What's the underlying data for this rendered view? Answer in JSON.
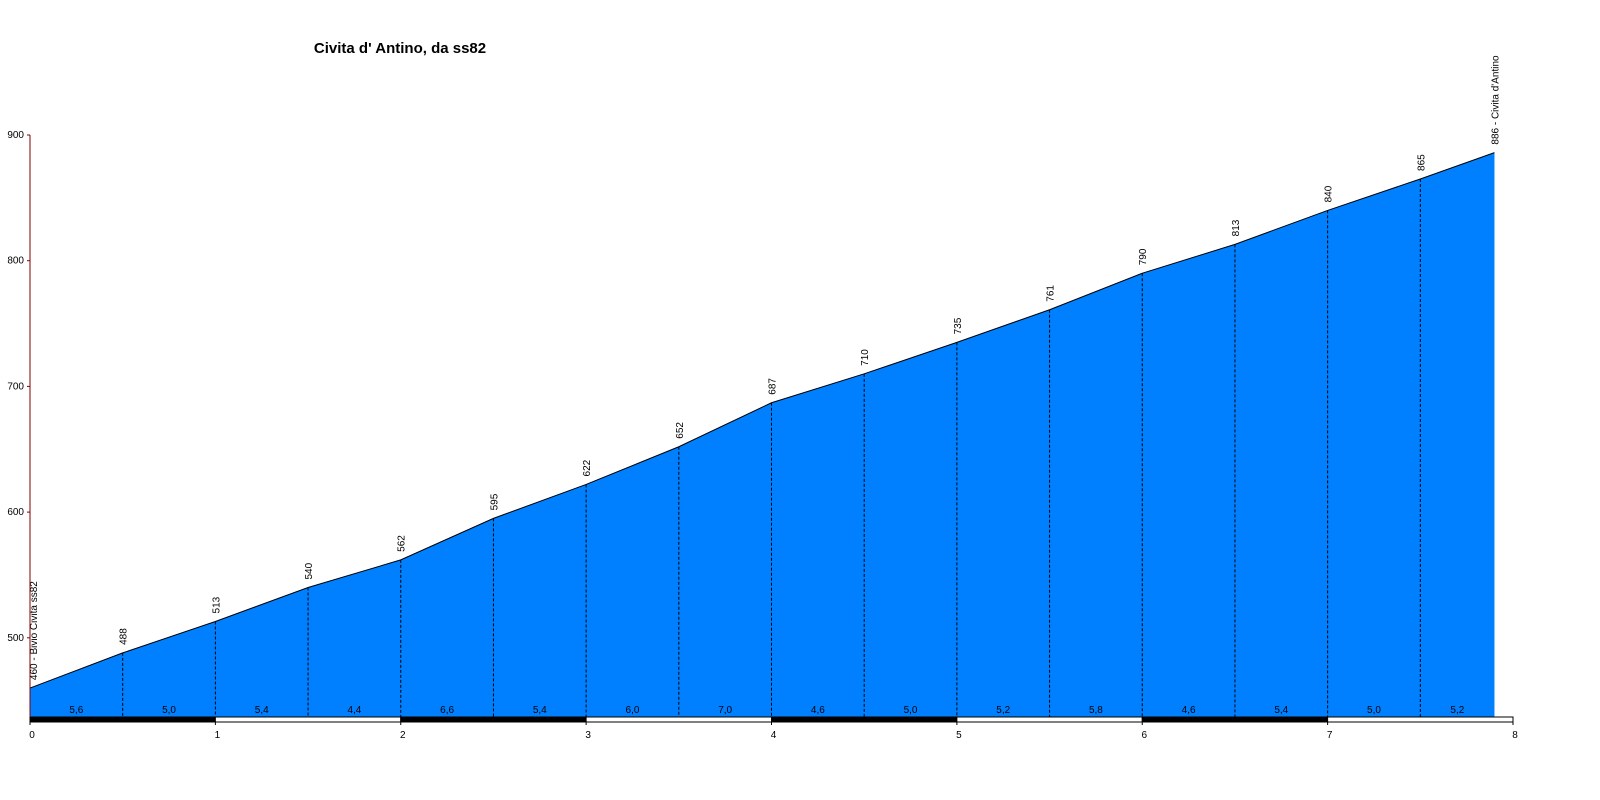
{
  "chart_data": {
    "type": "area",
    "title": "Civita d' Antino, da ss82",
    "x": [
      0,
      0.5,
      1,
      1.5,
      2,
      2.5,
      3,
      3.5,
      4,
      4.5,
      5,
      5.5,
      6,
      6.5,
      7,
      7.5,
      7.9
    ],
    "values": [
      460,
      488,
      513,
      540,
      562,
      595,
      622,
      652,
      687,
      710,
      735,
      761,
      790,
      813,
      840,
      865,
      886
    ],
    "value_labels": [
      "460 - Bivio Civita ss82",
      "488",
      "513",
      "540",
      "562",
      "595",
      "622",
      "652",
      "687",
      "710",
      "735",
      "761",
      "790",
      "813",
      "840",
      "865",
      "886 - Civita d'Antino"
    ],
    "gradient_labels": [
      "5,6",
      "5,0",
      "5,4",
      "4,4",
      "6,6",
      "5,4",
      "6,0",
      "7,0",
      "4,6",
      "5,0",
      "5,2",
      "5,8",
      "4,6",
      "5,4",
      "5,0",
      "5,2"
    ],
    "color": "#0080ff",
    "xlim": [
      0,
      8
    ],
    "xticks": [
      0,
      1,
      2,
      3,
      4,
      5,
      6,
      7,
      8
    ],
    "ylim": [
      437,
      900
    ],
    "yticks": [
      500,
      600,
      700,
      800,
      900
    ]
  }
}
